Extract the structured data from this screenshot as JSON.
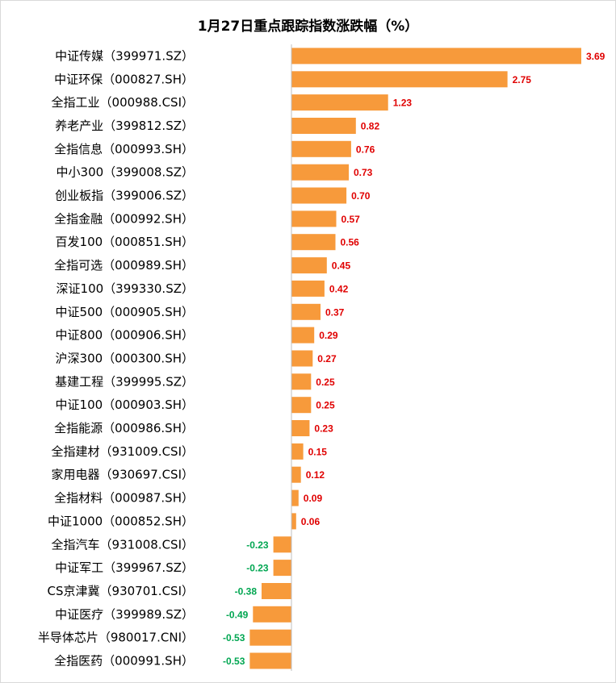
{
  "chart_data": {
    "type": "bar",
    "orientation": "horizontal",
    "title": "1月27日重点跟踪指数涨跌幅（%）",
    "categories": [
      "中证传媒（399971.SZ）",
      "中证环保（000827.SH）",
      "全指工业（000988.CSI）",
      "养老产业（399812.SZ）",
      "全指信息（000993.SH）",
      "中小300（399008.SZ）",
      "创业板指（399006.SZ）",
      "全指金融（000992.SH）",
      "百发100（000851.SH）",
      "全指可选（000989.SH）",
      "深证100（399330.SZ）",
      "中证500（000905.SH）",
      "中证800（000906.SH）",
      "沪深300（000300.SH）",
      "基建工程（399995.SZ）",
      "中证100（000903.SH）",
      "全指能源（000986.SH）",
      "全指建材（931009.CSI）",
      "家用电器（930697.CSI）",
      "全指材料（000987.SH）",
      "中证1000（000852.SH）",
      "全指汽车（931008.CSI）",
      "中证军工（399967.SZ）",
      "CS京津冀（930701.CSI）",
      "中证医疗（399989.SZ）",
      "半导体芯片（980017.CNI）",
      "全指医药（000991.SH）"
    ],
    "values": [
      3.69,
      2.75,
      1.23,
      0.82,
      0.76,
      0.73,
      0.7,
      0.57,
      0.56,
      0.45,
      0.42,
      0.37,
      0.29,
      0.27,
      0.25,
      0.25,
      0.23,
      0.15,
      0.12,
      0.09,
      0.06,
      -0.23,
      -0.23,
      -0.38,
      -0.49,
      -0.53,
      -0.53
    ],
    "value_labels": [
      "3.69",
      "2.75",
      "1.23",
      "0.82",
      "0.76",
      "0.73",
      "0.70",
      "0.57",
      "0.56",
      "0.45",
      "0.42",
      "0.37",
      "0.29",
      "0.27",
      "0.25",
      "0.25",
      "0.23",
      "0.15",
      "0.12",
      "0.09",
      "0.06",
      "-0.23",
      "-0.23",
      "-0.38",
      "-0.49",
      "-0.53",
      "-0.53"
    ],
    "xlim": [
      -0.53,
      3.69
    ],
    "xlabel": "",
    "ylabel": "",
    "grid": false,
    "legend": "none",
    "colors": {
      "bar": "#F79A3B",
      "positive_label": "#E00000",
      "negative_label": "#00A651",
      "axis": "#BFBFBF",
      "category_text": "#000000"
    }
  }
}
